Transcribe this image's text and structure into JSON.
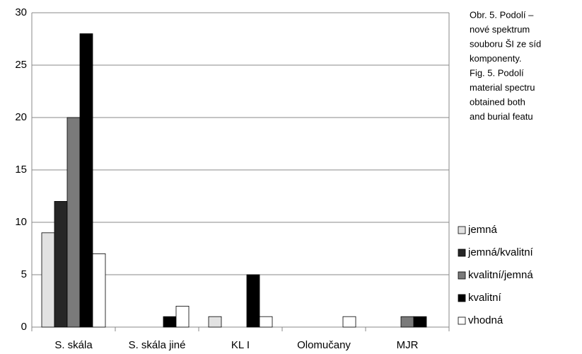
{
  "chart_data": {
    "type": "bar",
    "categories": [
      "S. skála",
      "S. skála jiné",
      "KL I",
      "Olomučany",
      "MJR"
    ],
    "series": [
      {
        "name": "jemná",
        "color": "#e2e2e2",
        "values": [
          9,
          0,
          1,
          0,
          0
        ]
      },
      {
        "name": "jemná/kvalitní",
        "color": "#262626",
        "values": [
          12,
          0,
          0,
          0,
          0
        ]
      },
      {
        "name": "kvalitní/jemná",
        "color": "#7a7a7a",
        "values": [
          20,
          0,
          0,
          0,
          1
        ]
      },
      {
        "name": "kvalitní",
        "color": "#000000",
        "values": [
          28,
          1,
          5,
          0,
          1
        ]
      },
      {
        "name": "vhodná",
        "color": "#ffffff",
        "values": [
          7,
          2,
          1,
          1,
          0
        ]
      }
    ],
    "ylim": [
      0,
      30
    ],
    "yticks": [
      0,
      5,
      10,
      15,
      20,
      25,
      30
    ],
    "grid": true,
    "caption": [
      "Obr. 5. Podolí –",
      "nové spektrum",
      "souboru ŠI ze síd",
      "komponenty.",
      "Fig. 5. Podolí",
      "material spectru",
      "obtained both",
      "and burial featu"
    ]
  }
}
